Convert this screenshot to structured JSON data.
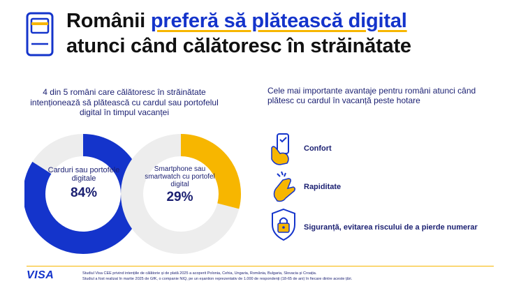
{
  "header": {
    "title_part1": "Românii ",
    "title_highlight": "preferă să plătească digital",
    "title_line2": "atunci când călătoresc în străinătate",
    "icon": "wallet-card-icon"
  },
  "left": {
    "text": "4 din 5 români care călătoresc în străinătate intenționează să plătească cu cardul sau portofelul digital în timpul vacanței"
  },
  "chart_data": [
    {
      "type": "pie",
      "categories": [
        "Carduri sau portofele digitale",
        ""
      ],
      "values": [
        84,
        16
      ],
      "label": "Carduri sau portofele digitale",
      "value_label": "84%"
    },
    {
      "type": "pie",
      "categories": [
        "Smartphone sau smartwatch cu portofel digital",
        ""
      ],
      "values": [
        29,
        71
      ],
      "label": "Smartphone sau smartwatch cu portofel digital",
      "value_label": "29%"
    }
  ],
  "colors": {
    "blue": "#1434cb",
    "yellow": "#f7b600",
    "grey": "#ededed",
    "navy": "#1a1f71"
  },
  "right": {
    "text": "Cele mai importante avantaje pentru români atunci când plătesc cu cardul în vacanță peste hotare",
    "benefits": [
      {
        "label": "Confort",
        "icon": "phone-hand-icon"
      },
      {
        "label": "Rapiditate",
        "icon": "tap-hand-icon"
      },
      {
        "label": "Siguranță, evitarea riscului de a pierde numerar",
        "icon": "shield-lock-icon"
      }
    ]
  },
  "footer": {
    "brand": "VISA",
    "note_line1": "Studiul Visa CEE privind intențiile de călătorie și de plată 2025 a acoperit Polonia, Cehia, Ungaria, România, Bulgaria, Slovacia și Croația.",
    "note_line2": "Studiul a fost realizat în martie 2025 de GfK, o companie NIQ, pe un eșantion reprezentativ de 1.000 de respondenți (18-65 de ani) în fiecare dintre aceste țări."
  }
}
